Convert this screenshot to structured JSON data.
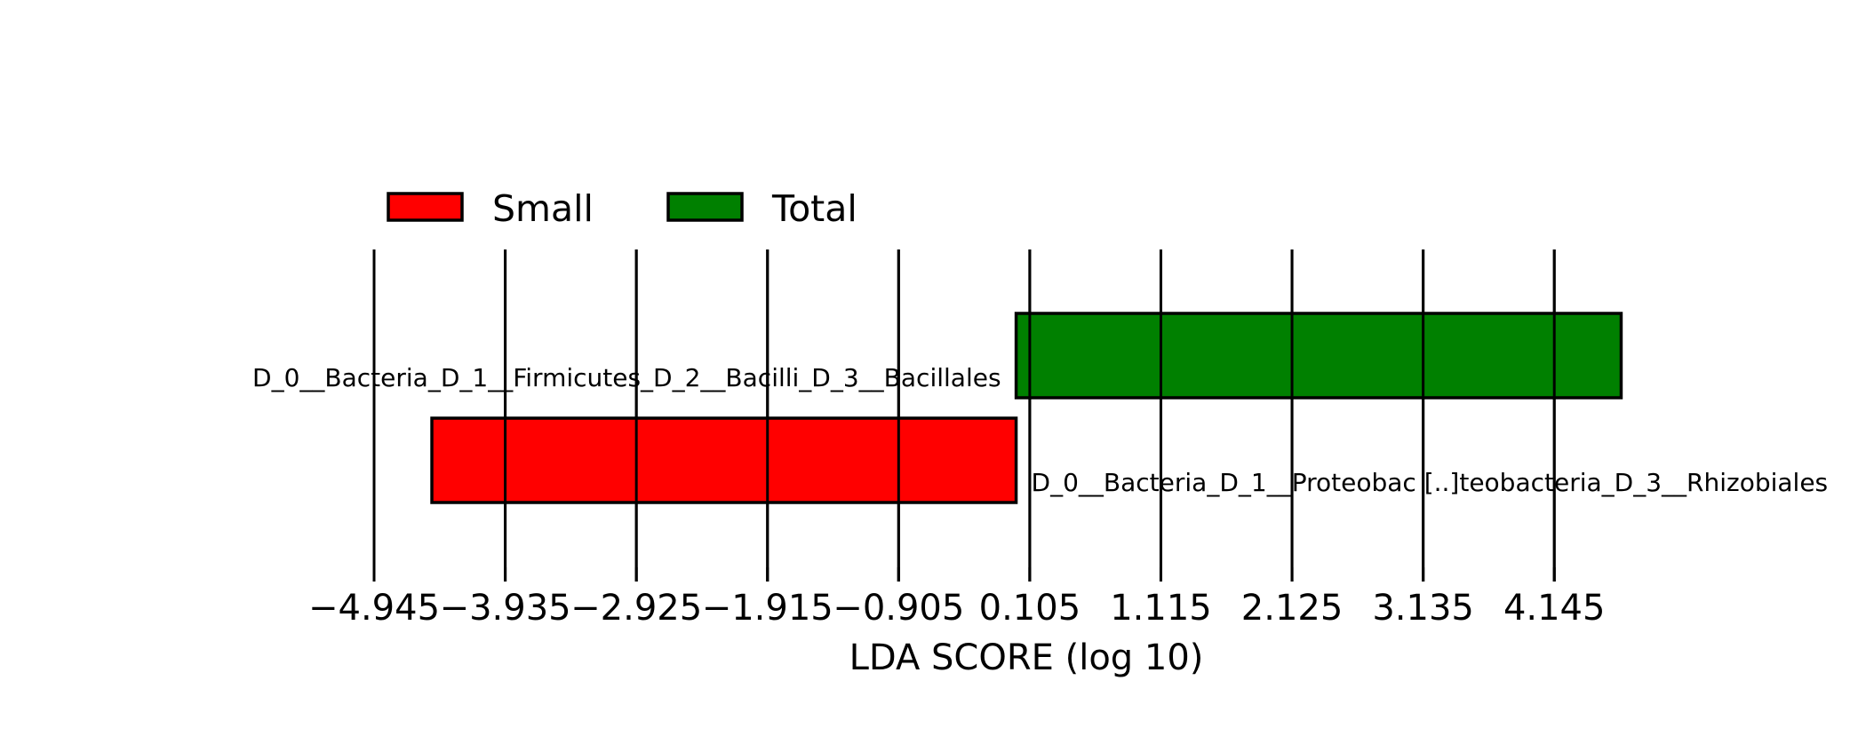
{
  "chart_data": {
    "type": "bar",
    "orientation": "horizontal",
    "title": "",
    "xlabel": "LDA SCORE (log 10)",
    "ylabel": "",
    "xlim": [
      -4.945,
      4.65
    ],
    "xticks": [
      "−4.945",
      "−3.935",
      "−2.925",
      "−1.915",
      "−0.905",
      "0.105",
      "1.115",
      "2.125",
      "3.135",
      "4.145"
    ],
    "xtick_values": [
      -4.945,
      -3.935,
      -2.925,
      -1.915,
      -0.905,
      0.105,
      1.115,
      2.125,
      3.135,
      4.145
    ],
    "grid": "vertical",
    "legend": {
      "placement": "top-left",
      "entries": [
        {
          "label": "Small",
          "color": "#ff0000"
        },
        {
          "label": "Total",
          "color": "#008000"
        }
      ]
    },
    "categories": [
      "D_0__Bacteria_D_1__Firmicutes_D_2__Bacilli_D_3__Bacillales",
      "D_0__Bacteria_D_1__Proteobac [..]teobacteria_D_3__Rhizobiales"
    ],
    "series": [
      {
        "name": "Total",
        "color": "#008000",
        "category": "D_0__Bacteria_D_1__Firmicutes_D_2__Bacilli_D_3__Bacillales",
        "value": 4.66
      },
      {
        "name": "Small",
        "color": "#ff0000",
        "category": "D_0__Bacteria_D_1__Proteobac [..]teobacteria_D_3__Rhizobiales",
        "value": -4.5
      }
    ]
  }
}
